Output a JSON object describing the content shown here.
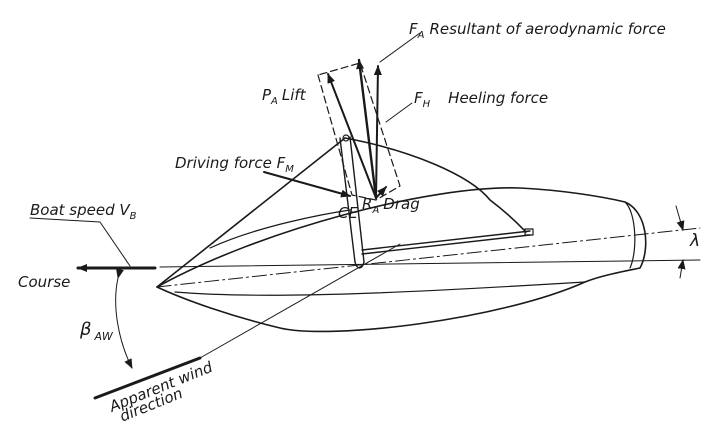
{
  "labels": {
    "resultant": {
      "symbol": "F",
      "sub": "A",
      "text": "Resultant of aerodynamic force"
    },
    "lift": {
      "symbol": "P",
      "sub": "A",
      "text": "Lift"
    },
    "heeling": {
      "symbol": "F",
      "sub": "H",
      "text": "Heeling force"
    },
    "driving": {
      "text": "Driving force F",
      "sub": "M"
    },
    "ce": "CE",
    "drag": {
      "symbol": "R",
      "sub": "A",
      "text": "Drag"
    },
    "boat_speed": {
      "text": "Boat speed V",
      "sub": "B"
    },
    "course": "Course",
    "beta": {
      "symbol": "β",
      "sub": "AW"
    },
    "lambda": "λ",
    "apparent_wind_1": "Apparent wind",
    "apparent_wind_2": "direction"
  },
  "colors": {
    "ink": "#1a1a1a",
    "background": "#ffffff"
  }
}
